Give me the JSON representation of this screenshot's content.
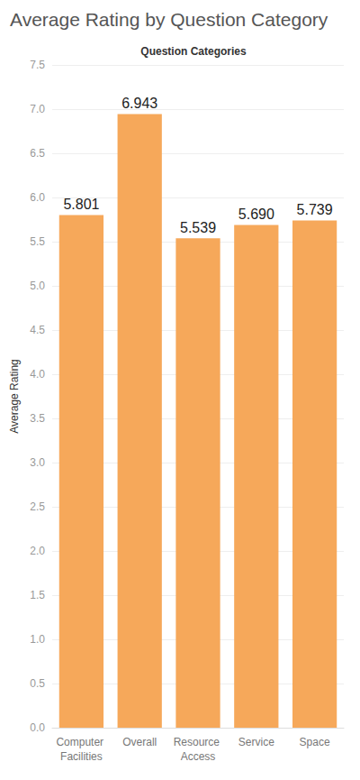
{
  "chart_data": {
    "type": "bar",
    "title": "Average Rating by Question Category",
    "xlabel": "Question Categories",
    "ylabel": "Average Rating",
    "categories": [
      "Computer Facilities",
      "Overall",
      "Resource Access",
      "Service",
      "Space"
    ],
    "values": [
      5.801,
      6.943,
      5.539,
      5.69,
      5.739
    ],
    "value_labels": [
      "5.801",
      "6.943",
      "5.539",
      "5.690",
      "5.739"
    ],
    "data_labels": true,
    "color": "#f6a85a",
    "ylim": [
      0,
      7.5
    ],
    "yticks": [
      {
        "value": 0,
        "label": "0.0"
      },
      0.5,
      {
        "value": 1,
        "label": "1.0"
      },
      1.5,
      {
        "value": 2,
        "label": "2.0"
      },
      2.5,
      {
        "value": 3,
        "label": "3.0"
      },
      3.5,
      {
        "value": 4,
        "label": "4.0"
      },
      4.5,
      {
        "value": 5,
        "label": "5.0"
      },
      5.5,
      {
        "value": 6,
        "label": "6.0"
      },
      6.5,
      {
        "value": 7,
        "label": "7.0"
      },
      7.5
    ],
    "grid": true
  }
}
